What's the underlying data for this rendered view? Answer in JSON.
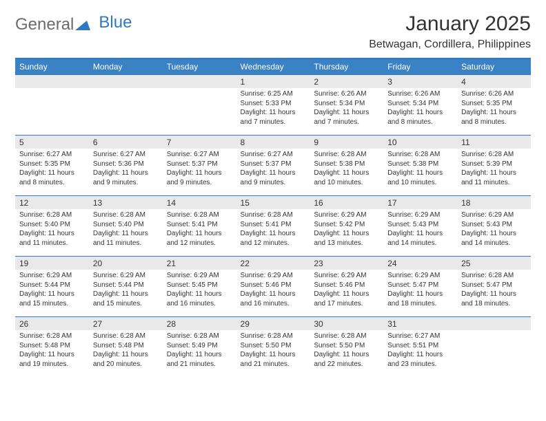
{
  "brand": {
    "text_general": "General",
    "text_blue": "Blue",
    "color_general": "#6b6b6b",
    "color_blue": "#2f78c3",
    "triangle_fill": "#2f78c3"
  },
  "header": {
    "month_title": "January 2025",
    "location": "Betwagan, Cordillera, Philippines"
  },
  "colors": {
    "header_bg": "#3a82c4",
    "header_border": "#2f78c3",
    "daynum_bg": "#e9e9e9",
    "row_divider": "#2f78c3",
    "text": "#333333",
    "page_bg": "#ffffff"
  },
  "typography": {
    "month_title_size": 30,
    "location_size": 16,
    "day_header_size": 12,
    "daynum_size": 12,
    "cell_size": 10
  },
  "day_headers": [
    "Sunday",
    "Monday",
    "Tuesday",
    "Wednesday",
    "Thursday",
    "Friday",
    "Saturday"
  ],
  "weeks": [
    [
      null,
      null,
      null,
      {
        "n": "1",
        "sr": "Sunrise: 6:25 AM",
        "ss": "Sunset: 5:33 PM",
        "dl1": "Daylight: 11 hours",
        "dl2": "and 7 minutes."
      },
      {
        "n": "2",
        "sr": "Sunrise: 6:26 AM",
        "ss": "Sunset: 5:34 PM",
        "dl1": "Daylight: 11 hours",
        "dl2": "and 7 minutes."
      },
      {
        "n": "3",
        "sr": "Sunrise: 6:26 AM",
        "ss": "Sunset: 5:34 PM",
        "dl1": "Daylight: 11 hours",
        "dl2": "and 8 minutes."
      },
      {
        "n": "4",
        "sr": "Sunrise: 6:26 AM",
        "ss": "Sunset: 5:35 PM",
        "dl1": "Daylight: 11 hours",
        "dl2": "and 8 minutes."
      }
    ],
    [
      {
        "n": "5",
        "sr": "Sunrise: 6:27 AM",
        "ss": "Sunset: 5:35 PM",
        "dl1": "Daylight: 11 hours",
        "dl2": "and 8 minutes."
      },
      {
        "n": "6",
        "sr": "Sunrise: 6:27 AM",
        "ss": "Sunset: 5:36 PM",
        "dl1": "Daylight: 11 hours",
        "dl2": "and 9 minutes."
      },
      {
        "n": "7",
        "sr": "Sunrise: 6:27 AM",
        "ss": "Sunset: 5:37 PM",
        "dl1": "Daylight: 11 hours",
        "dl2": "and 9 minutes."
      },
      {
        "n": "8",
        "sr": "Sunrise: 6:27 AM",
        "ss": "Sunset: 5:37 PM",
        "dl1": "Daylight: 11 hours",
        "dl2": "and 9 minutes."
      },
      {
        "n": "9",
        "sr": "Sunrise: 6:28 AM",
        "ss": "Sunset: 5:38 PM",
        "dl1": "Daylight: 11 hours",
        "dl2": "and 10 minutes."
      },
      {
        "n": "10",
        "sr": "Sunrise: 6:28 AM",
        "ss": "Sunset: 5:38 PM",
        "dl1": "Daylight: 11 hours",
        "dl2": "and 10 minutes."
      },
      {
        "n": "11",
        "sr": "Sunrise: 6:28 AM",
        "ss": "Sunset: 5:39 PM",
        "dl1": "Daylight: 11 hours",
        "dl2": "and 11 minutes."
      }
    ],
    [
      {
        "n": "12",
        "sr": "Sunrise: 6:28 AM",
        "ss": "Sunset: 5:40 PM",
        "dl1": "Daylight: 11 hours",
        "dl2": "and 11 minutes."
      },
      {
        "n": "13",
        "sr": "Sunrise: 6:28 AM",
        "ss": "Sunset: 5:40 PM",
        "dl1": "Daylight: 11 hours",
        "dl2": "and 11 minutes."
      },
      {
        "n": "14",
        "sr": "Sunrise: 6:28 AM",
        "ss": "Sunset: 5:41 PM",
        "dl1": "Daylight: 11 hours",
        "dl2": "and 12 minutes."
      },
      {
        "n": "15",
        "sr": "Sunrise: 6:28 AM",
        "ss": "Sunset: 5:41 PM",
        "dl1": "Daylight: 11 hours",
        "dl2": "and 12 minutes."
      },
      {
        "n": "16",
        "sr": "Sunrise: 6:29 AM",
        "ss": "Sunset: 5:42 PM",
        "dl1": "Daylight: 11 hours",
        "dl2": "and 13 minutes."
      },
      {
        "n": "17",
        "sr": "Sunrise: 6:29 AM",
        "ss": "Sunset: 5:43 PM",
        "dl1": "Daylight: 11 hours",
        "dl2": "and 14 minutes."
      },
      {
        "n": "18",
        "sr": "Sunrise: 6:29 AM",
        "ss": "Sunset: 5:43 PM",
        "dl1": "Daylight: 11 hours",
        "dl2": "and 14 minutes."
      }
    ],
    [
      {
        "n": "19",
        "sr": "Sunrise: 6:29 AM",
        "ss": "Sunset: 5:44 PM",
        "dl1": "Daylight: 11 hours",
        "dl2": "and 15 minutes."
      },
      {
        "n": "20",
        "sr": "Sunrise: 6:29 AM",
        "ss": "Sunset: 5:44 PM",
        "dl1": "Daylight: 11 hours",
        "dl2": "and 15 minutes."
      },
      {
        "n": "21",
        "sr": "Sunrise: 6:29 AM",
        "ss": "Sunset: 5:45 PM",
        "dl1": "Daylight: 11 hours",
        "dl2": "and 16 minutes."
      },
      {
        "n": "22",
        "sr": "Sunrise: 6:29 AM",
        "ss": "Sunset: 5:46 PM",
        "dl1": "Daylight: 11 hours",
        "dl2": "and 16 minutes."
      },
      {
        "n": "23",
        "sr": "Sunrise: 6:29 AM",
        "ss": "Sunset: 5:46 PM",
        "dl1": "Daylight: 11 hours",
        "dl2": "and 17 minutes."
      },
      {
        "n": "24",
        "sr": "Sunrise: 6:29 AM",
        "ss": "Sunset: 5:47 PM",
        "dl1": "Daylight: 11 hours",
        "dl2": "and 18 minutes."
      },
      {
        "n": "25",
        "sr": "Sunrise: 6:28 AM",
        "ss": "Sunset: 5:47 PM",
        "dl1": "Daylight: 11 hours",
        "dl2": "and 18 minutes."
      }
    ],
    [
      {
        "n": "26",
        "sr": "Sunrise: 6:28 AM",
        "ss": "Sunset: 5:48 PM",
        "dl1": "Daylight: 11 hours",
        "dl2": "and 19 minutes."
      },
      {
        "n": "27",
        "sr": "Sunrise: 6:28 AM",
        "ss": "Sunset: 5:48 PM",
        "dl1": "Daylight: 11 hours",
        "dl2": "and 20 minutes."
      },
      {
        "n": "28",
        "sr": "Sunrise: 6:28 AM",
        "ss": "Sunset: 5:49 PM",
        "dl1": "Daylight: 11 hours",
        "dl2": "and 21 minutes."
      },
      {
        "n": "29",
        "sr": "Sunrise: 6:28 AM",
        "ss": "Sunset: 5:50 PM",
        "dl1": "Daylight: 11 hours",
        "dl2": "and 21 minutes."
      },
      {
        "n": "30",
        "sr": "Sunrise: 6:28 AM",
        "ss": "Sunset: 5:50 PM",
        "dl1": "Daylight: 11 hours",
        "dl2": "and 22 minutes."
      },
      {
        "n": "31",
        "sr": "Sunrise: 6:27 AM",
        "ss": "Sunset: 5:51 PM",
        "dl1": "Daylight: 11 hours",
        "dl2": "and 23 minutes."
      },
      null
    ]
  ]
}
